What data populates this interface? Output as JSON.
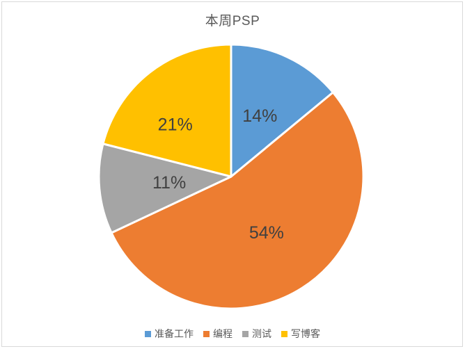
{
  "chart_data": {
    "type": "pie",
    "title": "本周PSP",
    "categories": [
      "准备工作",
      "编程",
      "测试",
      "写博客"
    ],
    "values": [
      14,
      54,
      11,
      21
    ],
    "data_labels": [
      "14%",
      "54%",
      "11%",
      "21%"
    ],
    "colors": [
      "#5B9BD5",
      "#ED7D31",
      "#A5A5A5",
      "#FFC000"
    ],
    "start_angle_deg": 0,
    "direction": "clockwise",
    "legend_position": "bottom",
    "slice_border_color": "#FFFFFF",
    "title_color": "#595959",
    "label_color": "#404040",
    "legend_text_color": "#595959",
    "frame_border_color": "#D9D9D9",
    "background_color": "#FFFFFF"
  }
}
